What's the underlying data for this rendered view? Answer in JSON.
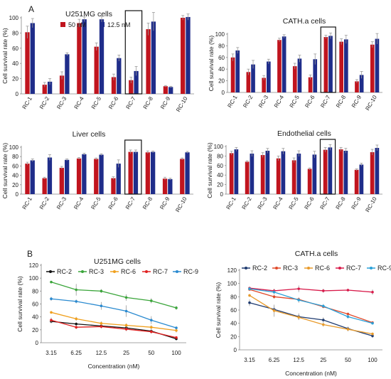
{
  "panels": {
    "a": "A",
    "b": "B"
  },
  "chart_data": [
    {
      "type": "bar",
      "title": "U251MG cells",
      "ylabel": "Cell survival rate (%)",
      "categories": [
        "RC-1",
        "RC-2",
        "RC-3",
        "RC-4",
        "RC-5",
        "RC-6",
        "RC-7",
        "RC-8",
        "RC-9",
        "RC-10"
      ],
      "ylim": [
        0,
        100
      ],
      "yticks": [
        0,
        20,
        40,
        60,
        80,
        100
      ],
      "highlight": "RC-7",
      "legend_position": "top-left",
      "series": [
        {
          "name": "50 nM",
          "color": "#c0141e",
          "values": [
            81,
            12,
            24,
            93,
            62,
            22,
            18,
            85,
            10,
            100
          ],
          "errors": [
            8,
            3,
            5,
            5,
            5,
            4,
            4,
            8,
            1,
            3
          ]
        },
        {
          "name": "12.5 nM",
          "color": "#1f2d8a",
          "values": [
            93,
            16,
            52,
            98,
            98,
            47,
            30,
            95,
            9,
            101
          ],
          "errors": [
            6,
            4,
            2,
            3,
            4,
            4,
            6,
            12,
            1,
            4
          ]
        }
      ]
    },
    {
      "type": "bar",
      "title": "CATH.a cells",
      "ylabel": "Cell survival rate (%)",
      "categories": [
        "RC-1",
        "RC-2",
        "RC-3",
        "RC-4",
        "RC-5",
        "RC-6",
        "RC-7",
        "RC-8",
        "RC-9",
        "RC-10"
      ],
      "ylim": [
        0,
        100
      ],
      "yticks": [
        0,
        20,
        40,
        60,
        80,
        100
      ],
      "highlight": "RC-7",
      "series": [
        {
          "name": "50 nM",
          "color": "#c0141e",
          "values": [
            60,
            35,
            25,
            90,
            45,
            26,
            95,
            87,
            19,
            82
          ],
          "errors": [
            6,
            5,
            4,
            3,
            5,
            4,
            3,
            5,
            3,
            5
          ]
        },
        {
          "name": "12.5 nM",
          "color": "#1f2d8a",
          "values": [
            72,
            48,
            53,
            96,
            58,
            57,
            97,
            91,
            30,
            92
          ],
          "errors": [
            5,
            7,
            4,
            3,
            6,
            9,
            5,
            7,
            6,
            9
          ]
        }
      ]
    },
    {
      "type": "bar",
      "title": "Liver cells",
      "ylabel": "Cell survival rate (%)",
      "categories": [
        "RC-1",
        "RC-2",
        "RC-3",
        "RC-4",
        "RC-5",
        "RC-6",
        "RC-7",
        "RC-8",
        "RC-9",
        "RC-10"
      ],
      "ylim": [
        0,
        100
      ],
      "yticks": [
        0,
        20,
        40,
        60,
        80,
        100
      ],
      "highlight": "RC-7",
      "series": [
        {
          "name": "50 nM",
          "color": "#c0141e",
          "values": [
            65,
            34,
            56,
            76,
            75,
            34,
            90,
            89,
            33,
            75
          ],
          "errors": [
            3,
            2,
            3,
            2,
            2,
            3,
            4,
            3,
            3,
            2
          ]
        },
        {
          "name": "12.5 nM",
          "color": "#1f2d8a",
          "values": [
            72,
            78,
            73,
            85,
            84,
            65,
            90,
            90,
            32,
            89
          ],
          "errors": [
            3,
            6,
            2,
            2,
            2,
            8,
            4,
            2,
            2,
            2
          ]
        }
      ]
    },
    {
      "type": "bar",
      "title": "Endothelial cells",
      "ylabel": "Cell survival rate (%)",
      "categories": [
        "RC-1",
        "RC-2",
        "RC-3",
        "RC-4",
        "RC-5",
        "RC-6",
        "RC-7",
        "RC-8",
        "RC-9",
        "RC-10"
      ],
      "ylim": [
        0,
        100
      ],
      "yticks": [
        0,
        20,
        40,
        60,
        80,
        100
      ],
      "highlight": "RC-7",
      "series": [
        {
          "name": "50 nM",
          "color": "#c0141e",
          "values": [
            86,
            68,
            82,
            75,
            71,
            53,
            93,
            94,
            51,
            88
          ],
          "errors": [
            4,
            2,
            5,
            5,
            5,
            2,
            5,
            4,
            2,
            6
          ]
        },
        {
          "name": "12.5 nM",
          "color": "#1f2d8a",
          "values": [
            94,
            85,
            91,
            90,
            85,
            83,
            98,
            91,
            62,
            97
          ],
          "errors": [
            4,
            6,
            5,
            6,
            6,
            7,
            6,
            5,
            3,
            6
          ]
        }
      ]
    },
    {
      "type": "line",
      "title": "U251MG cells",
      "ylabel": "Cell survival rate (%)",
      "xlabel": "Concentration  (nM)",
      "x": [
        "3.15",
        "6.25",
        "12.5",
        "25",
        "50",
        "100"
      ],
      "ylim": [
        0,
        120
      ],
      "yticks": [
        0,
        20,
        40,
        60,
        80,
        100,
        120
      ],
      "series": [
        {
          "name": "RC-2",
          "color": "#111111",
          "values": [
            33,
            29,
            26,
            23,
            18,
            6
          ],
          "errors": [
            3,
            3,
            3,
            3,
            3,
            2
          ]
        },
        {
          "name": "RC-3",
          "color": "#3aa53a",
          "values": [
            94,
            82,
            80,
            70,
            65,
            54
          ],
          "errors": [
            2,
            9,
            3,
            5,
            4,
            3
          ]
        },
        {
          "name": "RC-6",
          "color": "#f0a01e",
          "values": [
            47,
            37,
            30,
            27,
            24,
            19
          ],
          "errors": [
            2,
            3,
            3,
            3,
            3,
            3
          ]
        },
        {
          "name": "RC-7",
          "color": "#e02020",
          "values": [
            35,
            24,
            25,
            21,
            17,
            8
          ],
          "errors": [
            4,
            3,
            3,
            3,
            3,
            2
          ]
        },
        {
          "name": "RC-9",
          "color": "#2a8ad0",
          "values": [
            68,
            64,
            57,
            49,
            35,
            23
          ],
          "errors": [
            3,
            3,
            6,
            9,
            6,
            2
          ]
        }
      ]
    },
    {
      "type": "line",
      "title": "CATH.a cells",
      "ylabel": "Cell survival rate (%)",
      "xlabel": "Concentration  (nM)",
      "x": [
        "3.15",
        "6.25",
        "12.5",
        "25",
        "50",
        "100"
      ],
      "ylim": [
        0,
        120
      ],
      "yticks": [
        0,
        20,
        40,
        60,
        80,
        100,
        120
      ],
      "series": [
        {
          "name": "RC-2",
          "color": "#1f3b70",
          "values": [
            71,
            61,
            50,
            45,
            32,
            21
          ],
          "errors": [
            5,
            5,
            5,
            4,
            3,
            3
          ]
        },
        {
          "name": "RC-3",
          "color": "#e04a2a",
          "values": [
            91,
            80,
            76,
            65,
            54,
            41
          ],
          "errors": [
            2,
            3,
            2,
            2,
            2,
            2
          ]
        },
        {
          "name": "RC-6",
          "color": "#e89a2a",
          "values": [
            82,
            59,
            49,
            38,
            31,
            24
          ],
          "errors": [
            2,
            9,
            4,
            3,
            3,
            2
          ]
        },
        {
          "name": "RC-7",
          "color": "#d81a4a",
          "values": [
            93,
            89,
            92,
            89,
            90,
            87
          ],
          "errors": [
            2,
            3,
            5,
            3,
            2,
            4
          ]
        },
        {
          "name": "RC-9",
          "color": "#2aa0d8",
          "values": [
            92,
            87,
            75,
            66,
            50,
            40
          ],
          "errors": [
            3,
            3,
            4,
            3,
            3,
            2
          ]
        }
      ]
    }
  ]
}
